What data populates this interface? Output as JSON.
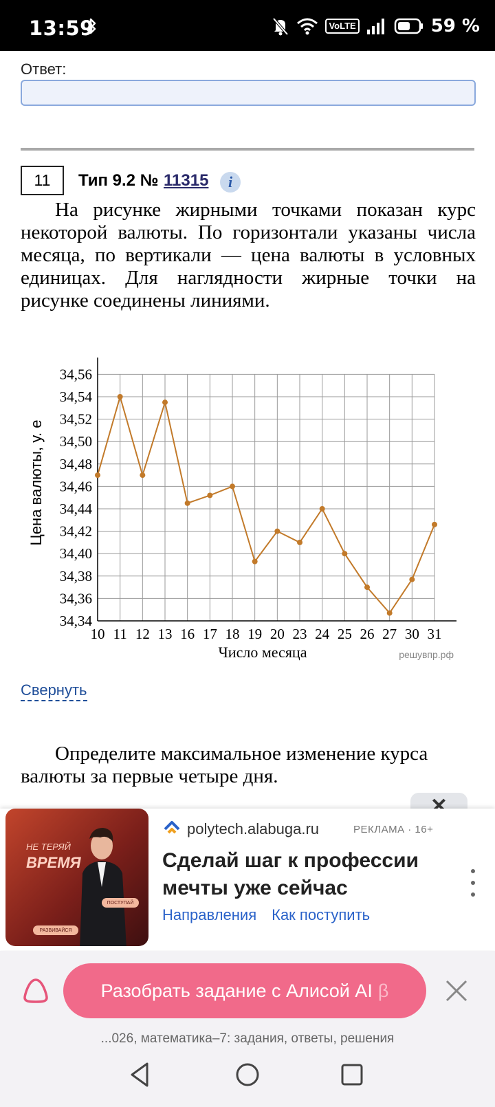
{
  "status_bar": {
    "time": "13:59",
    "battery": "59 %",
    "network_badge": "VoLTE"
  },
  "answer": {
    "label": "Ответ:",
    "value": ""
  },
  "task": {
    "number": "11",
    "type_label": "Тип 9.2 № ",
    "id": "11315",
    "info_icon": "i",
    "text": "На рисунке жирными точками показан курс некоторой валюты. По горизонтали указаны числа месяца, по вертикали — цена валюты в условных единицах. Для наглядности жирные точки на рисунке соединены линиями.",
    "collapse_link": "Свернуть",
    "question": "Определите максимальное изменение курса валюты за первые четыре дня."
  },
  "chart_data": {
    "type": "line",
    "x_categories": [
      "10",
      "11",
      "12",
      "13",
      "16",
      "17",
      "18",
      "19",
      "20",
      "23",
      "24",
      "25",
      "26",
      "27",
      "30",
      "31"
    ],
    "values": [
      34.47,
      34.54,
      34.47,
      34.535,
      34.445,
      34.452,
      34.46,
      34.393,
      34.42,
      34.41,
      34.44,
      34.4,
      34.37,
      34.347,
      34.377,
      34.426
    ],
    "yticks": [
      "34,34",
      "34,36",
      "34,38",
      "34,40",
      "34,42",
      "34,44",
      "34,46",
      "34,48",
      "34,50",
      "34,52",
      "34,54",
      "34,56"
    ],
    "ylim": [
      34.34,
      34.56
    ],
    "xlabel": "Число месяца",
    "ylabel": "Цена валюты, у. е",
    "watermark": "решувпр.рф",
    "grid": true,
    "line_color": "#c27a2a"
  },
  "ad": {
    "domain": "polytech.alabuga.ru",
    "label": "РЕКЛАМА · 16+",
    "title": "Сделай шаг к профессии мечты уже сейчас",
    "links": [
      "Направления",
      "Как поступить"
    ],
    "image_slogan_small": "НЕ ТЕРЯЙ",
    "image_slogan_big": "ВРЕМЯ",
    "image_pill_1": "ПОСТУПАЙ",
    "image_pill_2": "РАЗВИВАЙСЯ"
  },
  "alice": {
    "button_label": "Разобрать задание с Алисой AI",
    "beta": "β"
  },
  "page_title": "...026, математика–7: задания, ответы, решения"
}
